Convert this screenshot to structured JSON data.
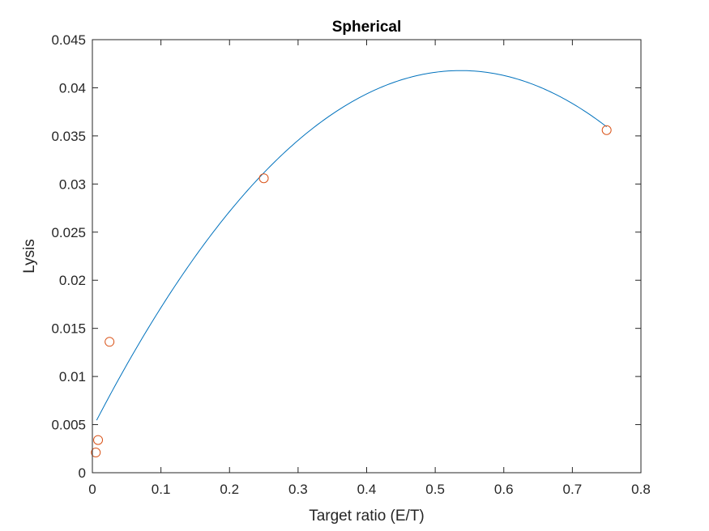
{
  "chart_data": {
    "type": "scatter",
    "title": "Spherical",
    "xlabel": "Target ratio (E/T)",
    "ylabel": "Lysis",
    "xlim": [
      0,
      0.8
    ],
    "ylim": [
      0,
      0.045
    ],
    "xticks": [
      0,
      0.1,
      0.2,
      0.3,
      0.4,
      0.5,
      0.6,
      0.7,
      0.8
    ],
    "xtick_labels": [
      "0",
      "0.1",
      "0.2",
      "0.3",
      "0.4",
      "0.5",
      "0.6",
      "0.7",
      "0.8"
    ],
    "yticks": [
      0,
      0.005,
      0.01,
      0.015,
      0.02,
      0.025,
      0.03,
      0.035,
      0.04,
      0.045
    ],
    "ytick_labels": [
      "0",
      "0.005",
      "0.01",
      "0.015",
      "0.02",
      "0.025",
      "0.03",
      "0.035",
      "0.04",
      "0.045"
    ],
    "grid": false,
    "box": true,
    "series": [
      {
        "kind": "line",
        "color": "#0072bd",
        "fit": "quadratic",
        "coefficients": [
          0.004598,
          0.13848,
          -0.12891
        ],
        "x_range": [
          0.00625,
          0.75
        ]
      },
      {
        "kind": "scatter",
        "marker": "circle",
        "color": "#d95319",
        "x": [
          0.005,
          0.0083,
          0.025,
          0.25,
          0.75
        ],
        "y": [
          0.0021,
          0.0034,
          0.0136,
          0.0306,
          0.0356
        ]
      }
    ]
  }
}
